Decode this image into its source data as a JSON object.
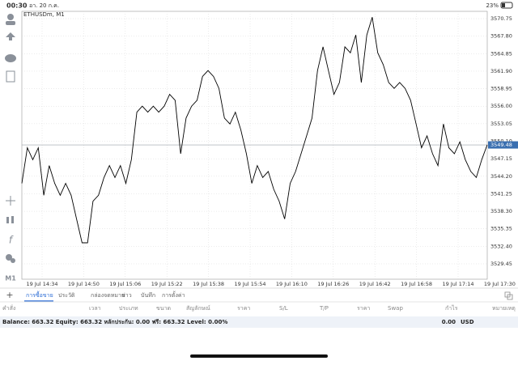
{
  "status_bar": {
    "time": "00:30",
    "date": "อา. 20 ก.ค.",
    "battery": "23%"
  },
  "sidebar": {
    "timeframe": "M1"
  },
  "chart_data": {
    "type": "line",
    "title": "ETHUSDm, M1",
    "color": "#000000",
    "grid": true,
    "values": [
      3543,
      3549,
      3547,
      3549,
      3541,
      3546,
      3543,
      3541,
      3543,
      3541,
      3537,
      3533,
      3533,
      3540,
      3541,
      3544,
      3546,
      3544,
      3546,
      3543,
      3547,
      3555,
      3556,
      3555,
      3556,
      3555,
      3556,
      3558,
      3557,
      3548,
      3554,
      3556,
      3557,
      3561,
      3562,
      3561,
      3559,
      3554,
      3553,
      3555,
      3552,
      3548,
      3543,
      3546,
      3544,
      3545,
      3542,
      3540,
      3537,
      3543,
      3545,
      3548,
      3551,
      3554,
      3562,
      3566,
      3562,
      3558,
      3560,
      3566,
      3565,
      3568,
      3560,
      3568,
      3571,
      3565,
      3563,
      3560,
      3559,
      3560,
      3559,
      3557,
      3553,
      3549,
      3551,
      3548,
      3546,
      3553,
      3549,
      3548,
      3550,
      3547,
      3545,
      3544,
      3547,
      3549.5
    ],
    "ylim": [
      3526.86,
      3571.98
    ],
    "yticks": [
      3570.75,
      {
        "value": 3567.8,
        "label": "3567.80"
      },
      3564.85,
      {
        "value": 3561.9,
        "label": "3561.90"
      },
      3558.95,
      {
        "value": 3556,
        "label": "3556.00"
      },
      3553.05,
      {
        "value": 3550.1,
        "label": "3550.10"
      },
      3547.15,
      {
        "value": 3544.2,
        "label": "3544.20"
      },
      3541.25,
      {
        "value": 3538.3,
        "label": "3538.30"
      },
      3535.35,
      {
        "value": 3532.4,
        "label": "3532.40"
      },
      3529.45
    ],
    "x_labels": [
      "19 Jul 14:34",
      "19 Jul 14:50",
      "19 Jul 15:06",
      "19 Jul 15:22",
      "19 Jul 15:38",
      "19 Jul 15:54",
      "19 Jul 16:10",
      "19 Jul 16:26",
      "19 Jul 16:42",
      "19 Jul 16:58",
      "19 Jul 17:14",
      "19 Jul 17:30"
    ],
    "current_price": 3549.48
  },
  "tabs": [
    "การซื้อขาย",
    "ประวัติ",
    "กล่องจดหมาย",
    "ข่าว",
    "บันทึก",
    "การตั้งค่า"
  ],
  "table_header": [
    "คำสั่ง",
    "เวลา",
    "ประเภท",
    "ขนาด",
    "สัญลักษณ์",
    "ราคา",
    "S/L",
    "T/P",
    "ราคา",
    "Swap",
    "กำไร",
    "หมายเหตุ"
  ],
  "balance": {
    "summary": "Balance: 663.32 Equity: 663.32 หลักประกัน: 0.00 ฟรี: 663.32 Level: 0.00%",
    "profit": "0.00",
    "currency": "USD"
  }
}
